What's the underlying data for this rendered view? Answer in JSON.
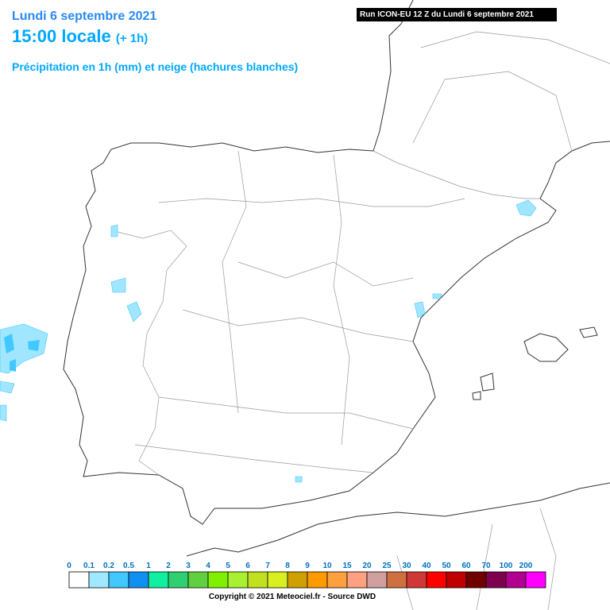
{
  "header": {
    "date": "Lundi 6 septembre 2021",
    "time": "15:00 locale",
    "lead": "(+ 1h)",
    "subtitle": "Précipitation en 1h (mm) et neige (hachures blanches)",
    "run": "Run ICON-EU 12 Z du Lundi 6 septembre 2021"
  },
  "legend": {
    "ticks": [
      0,
      0.1,
      0.2,
      0.5,
      1,
      2,
      3,
      4,
      5,
      6,
      7,
      8,
      9,
      10,
      15,
      20,
      25,
      30,
      40,
      50,
      60,
      70,
      100,
      200
    ],
    "colors": [
      "#ffffff",
      "#a0e8ff",
      "#40c8ff",
      "#1090f0",
      "#10f0a0",
      "#30d070",
      "#60d040",
      "#80f000",
      "#a8f030",
      "#c0e020",
      "#d8f020",
      "#d0a000",
      "#ff9a00",
      "#ffa040",
      "#ffa080",
      "#d0a0a0",
      "#d07040",
      "#d03838",
      "#ff0000",
      "#c00000",
      "#700000",
      "#800050",
      "#b00090",
      "#ff00ff"
    ]
  },
  "footer": {
    "copyright": "Copyright © 2021 Meteociel.fr - Source DWD"
  }
}
